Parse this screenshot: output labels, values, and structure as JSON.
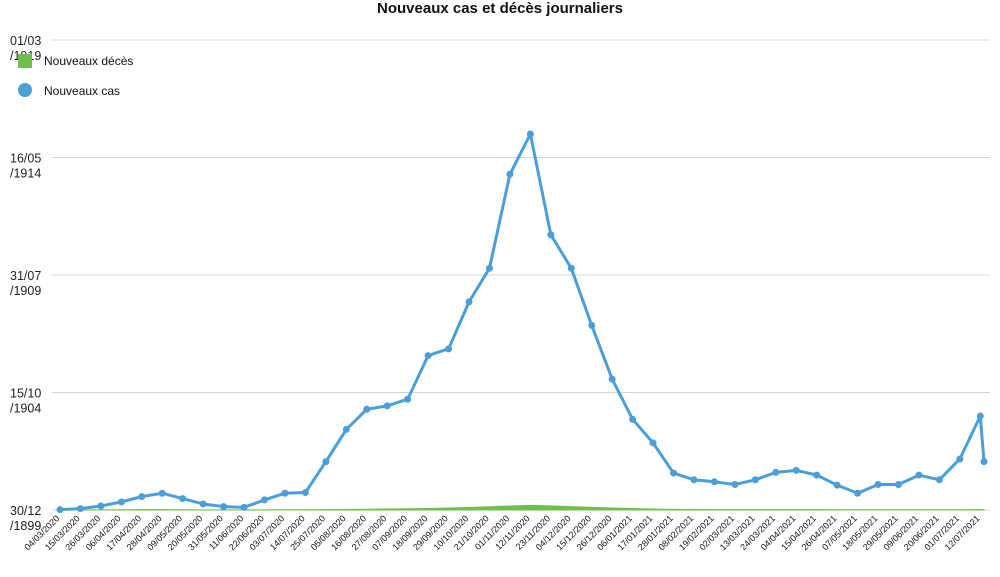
{
  "chart_data": {
    "type": "line",
    "title": "Nouveaux cas et décès journaliers",
    "xlabel": "",
    "ylabel": "",
    "grid": true,
    "legend_placement": "top-left",
    "colors": {
      "cases": "#4a9fd8",
      "deaths": "#6ebf4b",
      "grid": "#d4d4d4"
    },
    "y_tick_labels": [
      [
        "30/12",
        "/1899"
      ],
      [
        "15/10",
        "/1904"
      ],
      [
        "31/07",
        "/1909"
      ],
      [
        "16/05",
        "/1914"
      ],
      [
        "01/03",
        "/1919"
      ]
    ],
    "ylim": [
      0,
      7000
    ],
    "x_tick_labels": [
      "04/03/2020",
      "15/03/2020",
      "26/03/2020",
      "06/04/2020",
      "17/04/2020",
      "28/04/2020",
      "09/05/2020",
      "20/05/2020",
      "31/05/2020",
      "11/06/2020",
      "22/06/2020",
      "03/07/2020",
      "14/07/2020",
      "25/07/2020",
      "05/08/2020",
      "16/08/2020",
      "27/08/2020",
      "07/09/2020",
      "18/09/2020",
      "29/09/2020",
      "10/10/2020",
      "21/10/2020",
      "01/11/2020",
      "12/11/2020",
      "23/11/2020",
      "04/12/2020",
      "15/12/2020",
      "26/12/2020",
      "06/01/2021",
      "17/01/2021",
      "28/01/2021",
      "08/02/2021",
      "19/02/2021",
      "02/03/2021",
      "13/03/2021",
      "24/03/2021",
      "04/04/2021",
      "15/04/2021",
      "26/04/2021",
      "07/05/2021",
      "18/05/2021",
      "29/05/2021",
      "09/06/2021",
      "20/06/2021",
      "01/07/2021",
      "12/07/2021"
    ],
    "series": [
      {
        "name": "Nouveaux cas",
        "key": "cases",
        "x": [
          "04/03/2020",
          "15/03/2020",
          "26/03/2020",
          "06/04/2020",
          "17/04/2020",
          "28/04/2020",
          "09/05/2020",
          "20/05/2020",
          "31/05/2020",
          "11/06/2020",
          "22/06/2020",
          "03/07/2020",
          "14/07/2020",
          "25/07/2020",
          "05/08/2020",
          "16/08/2020",
          "27/08/2020",
          "07/09/2020",
          "18/09/2020",
          "29/09/2020",
          "10/10/2020",
          "21/10/2020",
          "01/11/2020",
          "12/11/2020",
          "23/11/2020",
          "04/12/2020",
          "15/12/2020",
          "26/12/2020",
          "06/01/2021",
          "17/01/2021",
          "28/01/2021",
          "08/02/2021",
          "19/02/2021",
          "02/03/2021",
          "13/03/2021",
          "24/03/2021",
          "04/04/2021",
          "15/04/2021",
          "26/04/2021",
          "07/05/2021",
          "18/05/2021",
          "29/05/2021",
          "09/06/2021",
          "20/06/2021",
          "01/07/2021",
          "12/07/2021",
          "14/07/2021"
        ],
        "values": [
          5,
          20,
          60,
          120,
          200,
          250,
          170,
          90,
          50,
          40,
          150,
          250,
          260,
          720,
          1200,
          1500,
          1550,
          1650,
          2300,
          2400,
          3100,
          3600,
          5000,
          5600,
          4100,
          3600,
          2750,
          1950,
          1350,
          1000,
          550,
          450,
          420,
          380,
          450,
          560,
          590,
          520,
          370,
          250,
          380,
          380,
          520,
          450,
          760,
          1400,
          720
        ]
      },
      {
        "name": "Nouveaux décès",
        "key": "deaths",
        "x": [
          "04/03/2020",
          "15/03/2020",
          "26/03/2020",
          "06/04/2020",
          "17/04/2020",
          "28/04/2020",
          "09/05/2020",
          "20/05/2020",
          "31/05/2020",
          "11/06/2020",
          "22/06/2020",
          "03/07/2020",
          "14/07/2020",
          "25/07/2020",
          "05/08/2020",
          "16/08/2020",
          "27/08/2020",
          "07/09/2020",
          "18/09/2020",
          "29/09/2020",
          "10/10/2020",
          "21/10/2020",
          "01/11/2020",
          "12/11/2020",
          "23/11/2020",
          "04/12/2020",
          "15/12/2020",
          "26/12/2020",
          "06/01/2021",
          "17/01/2021",
          "28/01/2021",
          "08/02/2021",
          "19/02/2021",
          "02/03/2021",
          "13/03/2021",
          "24/03/2021",
          "04/04/2021",
          "15/04/2021",
          "26/04/2021",
          "07/05/2021",
          "18/05/2021",
          "29/05/2021",
          "09/06/2021",
          "20/06/2021",
          "01/07/2021",
          "12/07/2021",
          "14/07/2021"
        ],
        "values": [
          0,
          1,
          2,
          4,
          6,
          5,
          3,
          2,
          1,
          1,
          2,
          3,
          3,
          5,
          8,
          12,
          15,
          18,
          22,
          30,
          38,
          48,
          60,
          68,
          62,
          50,
          40,
          30,
          22,
          15,
          10,
          7,
          6,
          5,
          5,
          6,
          6,
          5,
          4,
          3,
          3,
          3,
          3,
          3,
          4,
          6,
          5
        ]
      }
    ]
  }
}
